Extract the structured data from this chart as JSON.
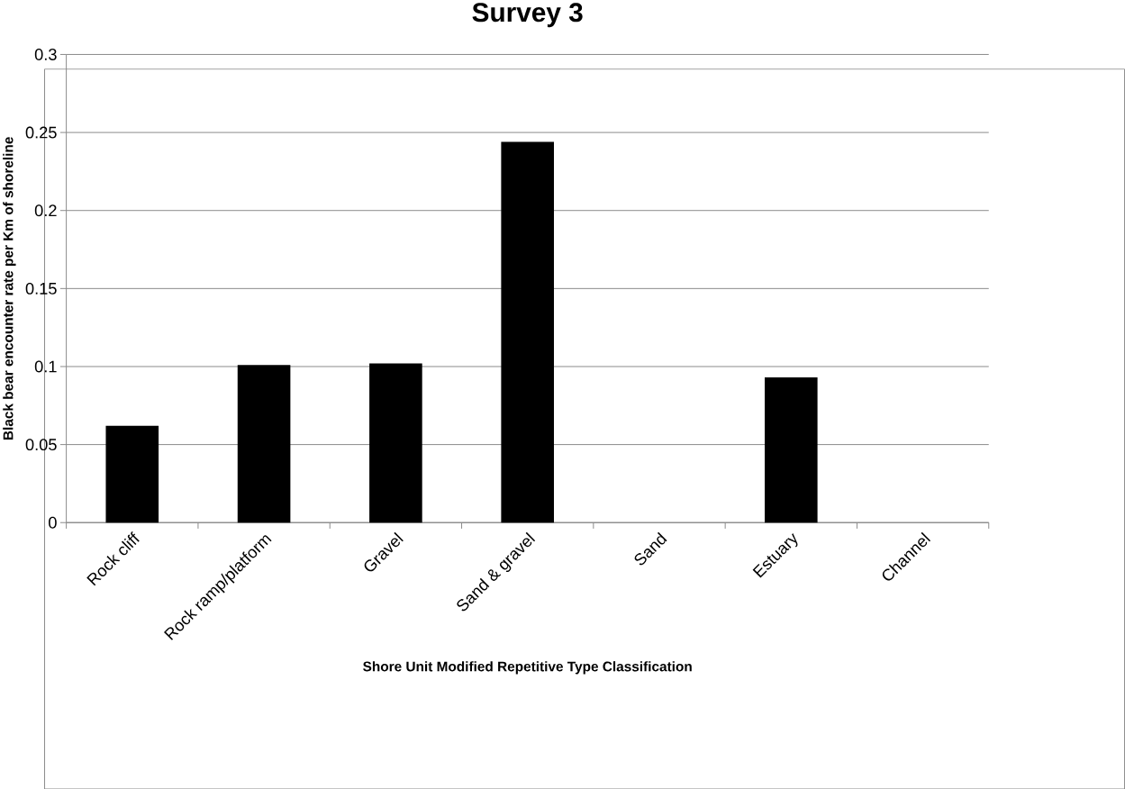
{
  "chart_data": {
    "type": "bar",
    "title": "Survey 3",
    "xlabel": "Shore Unit Modified Repetitive Type Classification",
    "ylabel": "Black bear encounter rate per Km of shoreline",
    "categories": [
      "Rock cliff",
      "Rock ramp/platform",
      "Gravel",
      "Sand & gravel",
      "Sand",
      "Estuary",
      "Channel"
    ],
    "values": [
      0.062,
      0.101,
      0.102,
      0.244,
      0,
      0.093,
      0
    ],
    "color": "#000000",
    "ylim": [
      0,
      0.3
    ],
    "yticks": [
      0,
      0.05,
      0.1,
      0.15,
      0.2,
      0.25,
      0.3
    ],
    "grid": "y"
  }
}
